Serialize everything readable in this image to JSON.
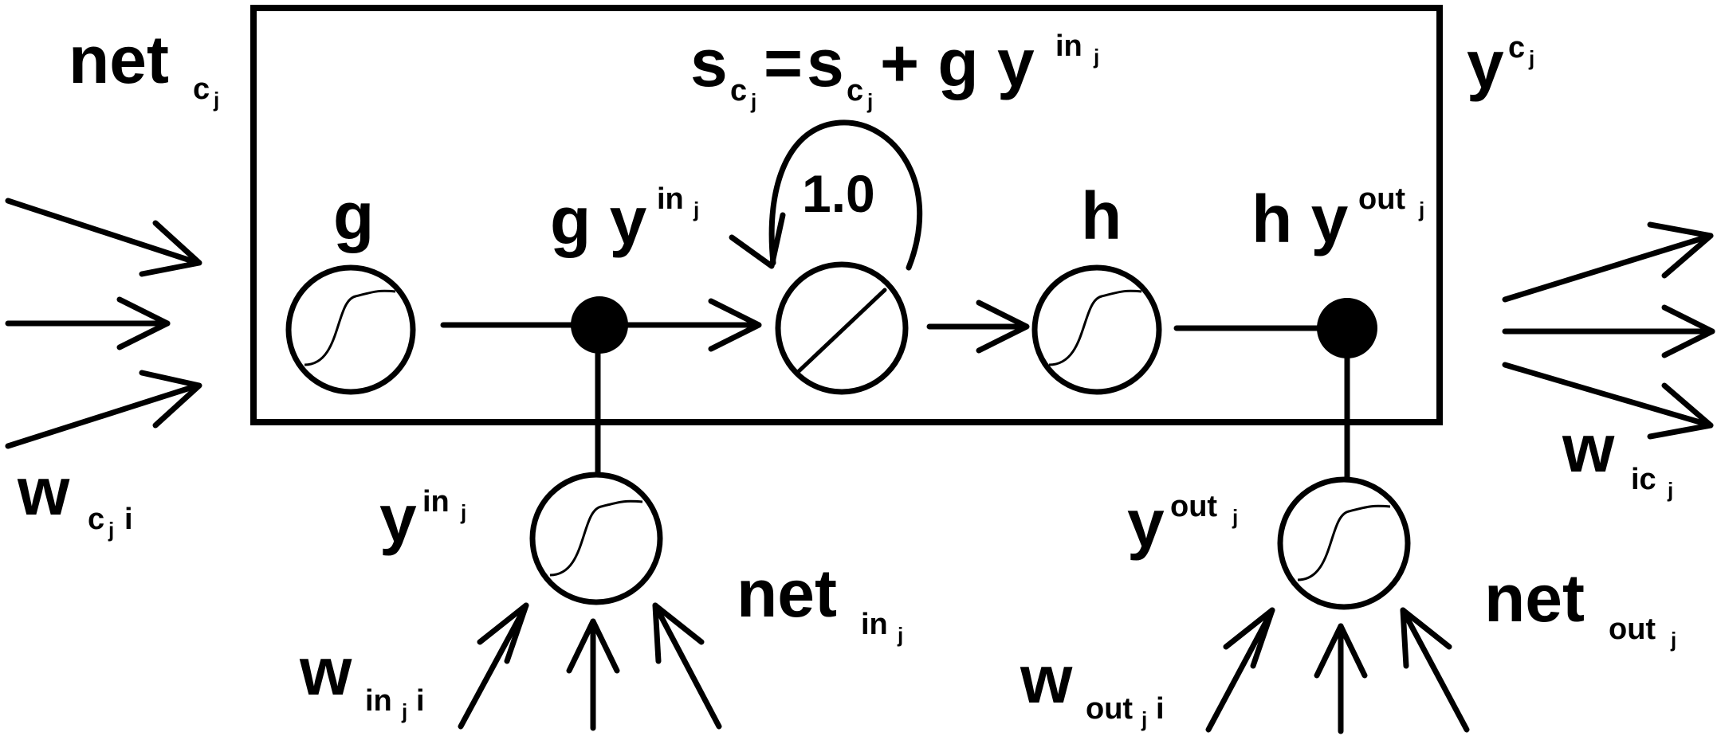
{
  "labels": {
    "net_cj": {
      "base": "net",
      "sub": "c",
      "subsub": "j"
    },
    "state_eq": {
      "s1": "s",
      "s1_sub": "c",
      "s1_subsub": "j",
      "eq": "=",
      "s2": "s",
      "s2_sub": "c",
      "s2_subsub": "j",
      "plus": "+ g y",
      "sup": "in",
      "sup_sub": "j"
    },
    "y_cj": {
      "base": "y",
      "sup": "c",
      "supsub": "j"
    },
    "g": "g",
    "g_yin": {
      "base": "g y",
      "sup": "in",
      "supsub": "j"
    },
    "self_weight": "1.0",
    "h": "h",
    "h_yout": {
      "base": "h y",
      "sup": "out",
      "supsub": "j"
    },
    "w_cji": {
      "base": "w",
      "sub": "c",
      "subsub": "j",
      "tail": "i"
    },
    "y_inj": {
      "base": "y",
      "sup": "in",
      "supsub": "j"
    },
    "net_inj": {
      "base": "net",
      "sub": "in",
      "subsub": "j"
    },
    "w_inji": {
      "base": "w",
      "sub": "in",
      "subsub": "j",
      "tail": "i"
    },
    "y_outj": {
      "base": "y",
      "sup": "out",
      "supsub": "j"
    },
    "net_outj": {
      "base": "net",
      "sub": "out",
      "subsub": "j"
    },
    "w_outji": {
      "base": "w",
      "sub": "out",
      "subsub": "j",
      "tail": "i"
    },
    "w_icj": {
      "base": "w",
      "sub": "ic",
      "subsub": "j"
    }
  }
}
